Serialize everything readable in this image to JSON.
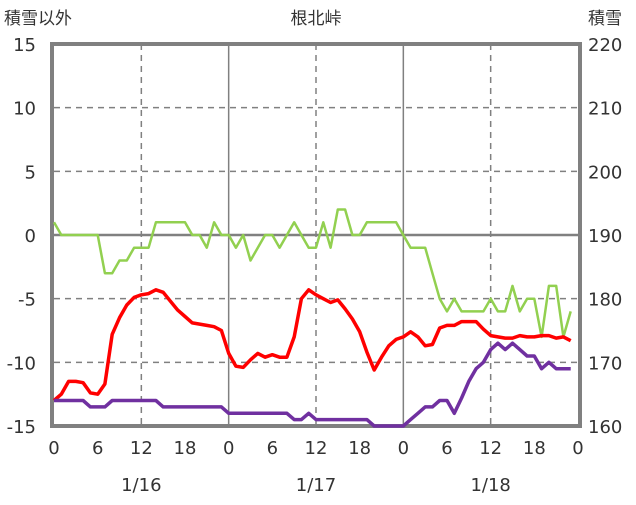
{
  "chart_data": {
    "type": "line",
    "title": "根北峠",
    "ylabel_left": "積雪以外",
    "ylabel_right": "積雪",
    "ylim_left": [
      -15,
      15
    ],
    "ylim_right": [
      160,
      220
    ],
    "yticks_left": [
      "15",
      "10",
      "5",
      "0",
      "-5",
      "-10",
      "-15"
    ],
    "yticks_right": [
      "220",
      "210",
      "200",
      "190",
      "180",
      "170",
      "160"
    ],
    "xticks": [
      "0",
      "6",
      "12",
      "18",
      "0",
      "6",
      "12",
      "18",
      "0",
      "6",
      "12",
      "18",
      "0"
    ],
    "day_labels": [
      "1/16",
      "1/17",
      "1/18"
    ],
    "x_unit": "hours from 1/16 0:00",
    "grid": true,
    "colors": {
      "green": "#92d050",
      "red": "#ff0000",
      "purple": "#7030a0",
      "axis": "#808080"
    },
    "series": [
      {
        "name": "green",
        "axis": "left",
        "values": [
          1,
          0,
          0,
          0,
          0,
          0,
          0,
          -3,
          -3,
          -2,
          -2,
          -1,
          -1,
          -1,
          1,
          1,
          1,
          1,
          1,
          0,
          0,
          -1,
          1,
          0,
          0,
          -1,
          0,
          -2,
          -1,
          0,
          0,
          -1,
          0,
          1,
          0,
          -1,
          -1,
          1,
          -1,
          2,
          2,
          0,
          0,
          1,
          1,
          1,
          1,
          1,
          0,
          -1,
          -1,
          -1,
          -3,
          -5,
          -6,
          -5,
          -6,
          -6,
          -6,
          -6,
          -5,
          -6,
          -6,
          -4,
          -6,
          -5,
          -5,
          -8,
          -4,
          -4,
          -8,
          -6
        ]
      },
      {
        "name": "red",
        "axis": "left",
        "values": [
          -13,
          -12.5,
          -11.5,
          -11.5,
          -11.6,
          -12.4,
          -12.5,
          -11.7,
          -7.8,
          -6.5,
          -5.5,
          -4.9,
          -4.7,
          -4.6,
          -4.3,
          -4.5,
          -5.2,
          -5.9,
          -6.4,
          -6.9,
          -7,
          -7.1,
          -7.2,
          -7.5,
          -9.3,
          -10.3,
          -10.4,
          -9.8,
          -9.3,
          -9.6,
          -9.4,
          -9.6,
          -9.6,
          -8,
          -5,
          -4.3,
          -4.7,
          -5,
          -5.3,
          -5.1,
          -5.8,
          -6.6,
          -7.6,
          -9.2,
          -10.6,
          -9.6,
          -8.7,
          -8.2,
          -8,
          -7.6,
          -8,
          -8.7,
          -8.6,
          -7.3,
          -7.1,
          -7.1,
          -6.8,
          -6.8,
          -6.8,
          -7.4,
          -7.9,
          -8,
          -8.1,
          -8.1,
          -7.9,
          -8,
          -8,
          -7.9,
          -7.9,
          -8.1,
          -8,
          -8.3
        ]
      },
      {
        "name": "purple",
        "axis": "right",
        "values": [
          164,
          164,
          164,
          164,
          164,
          163,
          163,
          163,
          164,
          164,
          164,
          164,
          164,
          164,
          164,
          163,
          163,
          163,
          163,
          163,
          163,
          163,
          163,
          163,
          162,
          162,
          162,
          162,
          162,
          162,
          162,
          162,
          162,
          161,
          161,
          162,
          161,
          161,
          161,
          161,
          161,
          161,
          161,
          161,
          160,
          160,
          160,
          160,
          160,
          161,
          162,
          163,
          163,
          164,
          164,
          162,
          164.4,
          167,
          169,
          170,
          172,
          173,
          172,
          173,
          172,
          171,
          171,
          169,
          170,
          169,
          169,
          169
        ]
      }
    ]
  }
}
